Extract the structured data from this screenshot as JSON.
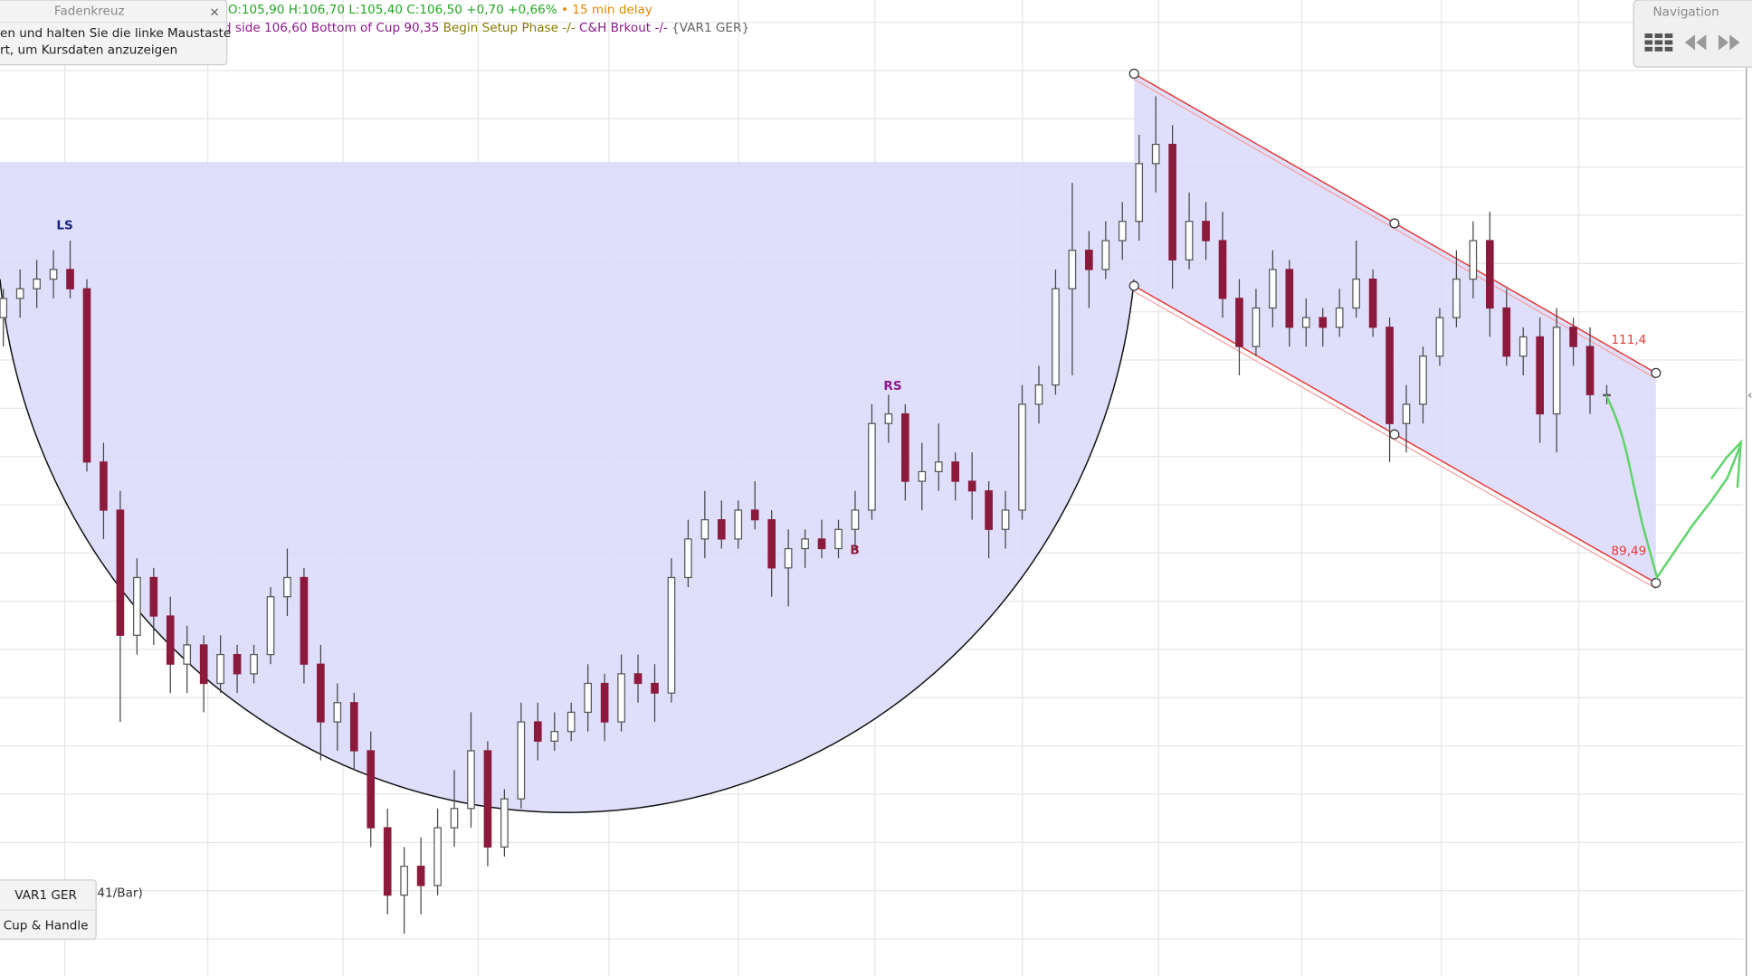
{
  "chart_data": {
    "type": "candlestick",
    "ylim": [
      48.6,
      150
    ],
    "up_color": "#ffffff",
    "down_color": "#8b1a3c",
    "open": [
      117,
      119,
      120,
      121,
      122,
      120,
      102,
      97,
      84,
      90,
      86,
      81,
      83,
      79,
      82,
      80,
      82,
      88,
      90,
      81,
      75,
      77,
      72,
      64,
      57,
      60,
      58,
      64,
      66,
      72,
      62,
      67,
      75,
      73,
      74,
      76,
      79,
      75,
      80,
      79,
      78,
      90,
      94,
      96,
      94,
      97,
      96,
      91,
      93,
      94,
      93,
      95,
      97,
      106,
      107,
      100,
      101,
      102,
      100,
      99,
      95,
      97,
      108,
      110,
      120,
      124,
      122,
      125,
      127,
      133,
      135,
      123,
      127,
      125,
      119,
      114,
      118,
      122,
      116,
      117,
      116,
      118,
      121,
      116,
      106,
      108,
      113,
      117,
      121,
      125,
      118,
      113,
      115,
      107,
      116,
      114,
      109
    ],
    "high": [
      120,
      122,
      123,
      124,
      125,
      121,
      104,
      99,
      92,
      91,
      88,
      85,
      84,
      84,
      83,
      83,
      89,
      93,
      91,
      83,
      79,
      78,
      74,
      66,
      62,
      63,
      66,
      70,
      76,
      73,
      68,
      77,
      77,
      76,
      77,
      81,
      80,
      82,
      82,
      81,
      92,
      96,
      99,
      98,
      98,
      100,
      97,
      95,
      95,
      96,
      96,
      99,
      108,
      109,
      108,
      104,
      106,
      103,
      103,
      100,
      99,
      110,
      112,
      122,
      131,
      126,
      127,
      129,
      136,
      140,
      137,
      130,
      129,
      128,
      121,
      120,
      124,
      123,
      119,
      118,
      120,
      125,
      122,
      117,
      110,
      114,
      118,
      124,
      127,
      128,
      120,
      116,
      117,
      118,
      117,
      116,
      110
    ],
    "low": [
      114,
      117,
      118,
      119,
      119,
      101,
      94,
      75,
      82,
      83,
      78,
      78,
      76,
      78,
      78,
      79,
      81,
      86,
      79,
      71,
      72,
      70,
      62,
      55,
      53,
      55,
      57,
      62,
      64,
      60,
      61,
      66,
      71,
      72,
      73,
      74,
      73,
      74,
      77,
      75,
      77,
      89,
      92,
      93,
      93,
      95,
      88,
      87,
      91,
      92,
      92,
      93,
      96,
      104,
      98,
      97,
      99,
      98,
      96,
      92,
      93,
      96,
      106,
      109,
      111,
      118,
      121,
      123,
      125,
      130,
      120,
      122,
      123,
      117,
      111,
      113,
      116,
      114,
      114,
      114,
      115,
      117,
      115,
      102,
      103,
      106,
      112,
      116,
      119,
      115,
      112,
      111,
      104,
      103,
      112,
      107,
      108
    ],
    "close": [
      119,
      120,
      121,
      122,
      120,
      102,
      97,
      84,
      90,
      86,
      81,
      83,
      79,
      82,
      80,
      82,
      88,
      90,
      81,
      75,
      77,
      72,
      64,
      57,
      60,
      58,
      64,
      66,
      72,
      62,
      67,
      75,
      73,
      74,
      76,
      79,
      75,
      80,
      79,
      78,
      90,
      94,
      96,
      94,
      97,
      96,
      91,
      93,
      94,
      93,
      95,
      97,
      106,
      107,
      100,
      101,
      102,
      100,
      99,
      95,
      97,
      108,
      110,
      120,
      124,
      122,
      125,
      127,
      133,
      135,
      123,
      127,
      125,
      119,
      114,
      118,
      122,
      116,
      117,
      116,
      118,
      121,
      116,
      106,
      108,
      113,
      117,
      121,
      125,
      118,
      113,
      115,
      107,
      116,
      114,
      109,
      109
    ],
    "annotations": [
      "LS",
      "RS",
      "B"
    ],
    "channel_labels": [
      {
        "value": 111.4,
        "label": "111,4"
      },
      {
        "value": 89.49,
        "label": "89,49"
      }
    ]
  },
  "header": {
    "quote": "O:105,90 H:106,70 L:105,40 C:106,50 +0,70 +0,66%",
    "delay": "• 15 min delay",
    "studies": [
      "d side 106,60",
      "Bottom of Cup 90,35",
      "Begin Setup Phase -/-",
      "C&H Brkout -/-",
      "{VAR1 GER}"
    ]
  },
  "tooltip": {
    "title": "Fadenkreuz",
    "close": "×",
    "lines": [
      "en und halten Sie die linke Maustaste",
      "rt, um Kursdaten anzuzeigen"
    ]
  },
  "navigation": {
    "title": "Navigation"
  },
  "legend_box": {
    "symbol": "VAR1 GER",
    "study": "Cup & Handle",
    "interval": "41/Bar)"
  }
}
